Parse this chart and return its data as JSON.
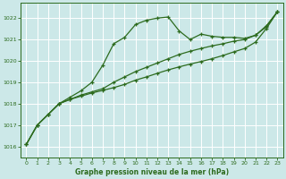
{
  "bg_color": "#cce8e8",
  "grid_color": "#ffffff",
  "line_color": "#2d6b1e",
  "marker_color": "#2d6b1e",
  "title": "Graphe pression niveau de la mer (hPa)",
  "ylim": [
    1015.5,
    1022.7
  ],
  "xlim": [
    -0.5,
    23.5
  ],
  "yticks": [
    1016,
    1017,
    1018,
    1019,
    1020,
    1021,
    1022
  ],
  "xticks": [
    0,
    1,
    2,
    3,
    4,
    5,
    6,
    7,
    8,
    9,
    10,
    11,
    12,
    13,
    14,
    15,
    16,
    17,
    18,
    19,
    20,
    21,
    22,
    23
  ],
  "series1": {
    "x": [
      0,
      1,
      2,
      3,
      4,
      5,
      6,
      7,
      8,
      9,
      10,
      11,
      12,
      13,
      14,
      15,
      16,
      17,
      18,
      19,
      20,
      21,
      22,
      23
    ],
    "y": [
      1016.1,
      1017.0,
      1017.5,
      1018.0,
      1018.3,
      1018.6,
      1019.0,
      1019.8,
      1020.8,
      1021.1,
      1021.7,
      1021.9,
      1022.0,
      1022.05,
      1021.4,
      1021.0,
      1021.25,
      1021.15,
      1021.1,
      1021.1,
      1021.05,
      1021.2,
      1021.65,
      1022.3
    ]
  },
  "series2": {
    "x": [
      0,
      1,
      2,
      3,
      4,
      5,
      6,
      7,
      8,
      9,
      10,
      11,
      12,
      13,
      14,
      15,
      16,
      17,
      18,
      19,
      20,
      21,
      22,
      23
    ],
    "y": [
      1016.1,
      1017.0,
      1017.5,
      1018.0,
      1018.2,
      1018.4,
      1018.55,
      1018.7,
      1019.0,
      1019.25,
      1019.5,
      1019.7,
      1019.9,
      1020.1,
      1020.3,
      1020.45,
      1020.58,
      1020.7,
      1020.8,
      1020.92,
      1021.0,
      1021.2,
      1021.6,
      1022.3
    ]
  },
  "series3": {
    "x": [
      0,
      1,
      2,
      3,
      4,
      5,
      6,
      7,
      8,
      9,
      10,
      11,
      12,
      13,
      14,
      15,
      16,
      17,
      18,
      19,
      20,
      21,
      22,
      23
    ],
    "y": [
      1016.1,
      1017.0,
      1017.5,
      1018.0,
      1018.2,
      1018.35,
      1018.5,
      1018.62,
      1018.75,
      1018.9,
      1019.1,
      1019.25,
      1019.42,
      1019.58,
      1019.72,
      1019.85,
      1019.97,
      1020.1,
      1020.25,
      1020.42,
      1020.58,
      1020.88,
      1021.52,
      1022.3
    ]
  }
}
